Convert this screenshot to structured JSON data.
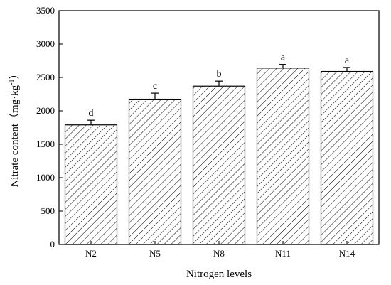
{
  "chart_data": {
    "type": "bar",
    "categories": [
      "N2",
      "N5",
      "N8",
      "N11",
      "N14"
    ],
    "values": [
      1790,
      2175,
      2370,
      2640,
      2590
    ],
    "errors": [
      70,
      90,
      75,
      55,
      60
    ],
    "significance": [
      "d",
      "c",
      "b",
      "a",
      "a"
    ],
    "xlabel": "Nitrogen levels",
    "ylabel": "Nitrate content（mg·kg",
    "ylabel_sup": "-1",
    "ylabel_close": "）",
    "ylim": [
      0,
      3500
    ],
    "yticks": [
      0,
      500,
      1000,
      1500,
      2000,
      2500,
      3000,
      3500
    ],
    "fill_pattern": "diagonal-hatch",
    "bar_color": "#ffffff",
    "line_color": "#000000",
    "grid": false
  }
}
